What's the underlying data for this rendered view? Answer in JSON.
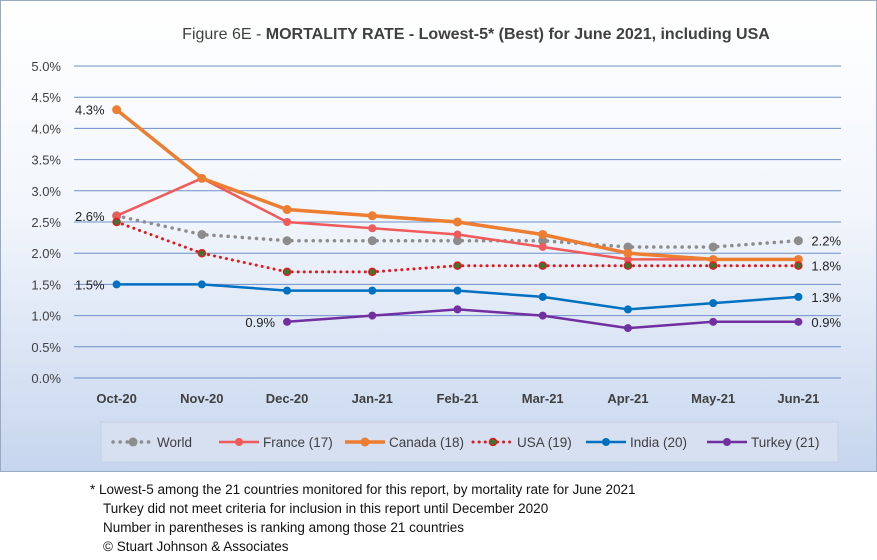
{
  "chart_data": {
    "type": "line",
    "title_prefix": "Figure 6E  - ",
    "title_main": "MORTALITY RATE - Lowest-5* (Best) for June 2021, including USA",
    "categories": [
      "Oct-20",
      "Nov-20",
      "Dec-20",
      "Jan-21",
      "Feb-21",
      "Mar-21",
      "Apr-21",
      "May-21",
      "Jun-21"
    ],
    "yticks": [
      "0.0%",
      "0.5%",
      "1.0%",
      "1.5%",
      "2.0%",
      "2.5%",
      "3.0%",
      "3.5%",
      "4.0%",
      "4.5%",
      "5.0%"
    ],
    "ylim": [
      0,
      5
    ],
    "grid": true,
    "legend_position": "bottom",
    "series": [
      {
        "name": "World",
        "color": "#8c8c8c",
        "style": "dotted-gray",
        "values": [
          2.6,
          2.3,
          2.2,
          2.2,
          2.2,
          2.2,
          2.1,
          2.1,
          2.2
        ]
      },
      {
        "name": "France (17)",
        "color": "#f05a5a",
        "style": "solid",
        "values": [
          2.6,
          3.2,
          2.5,
          2.4,
          2.3,
          2.1,
          1.9,
          1.9,
          1.9
        ]
      },
      {
        "name": "Canada (18)",
        "color": "#ed7d31",
        "style": "solid-thick",
        "values": [
          4.3,
          3.2,
          2.7,
          2.6,
          2.5,
          2.3,
          2.0,
          1.9,
          1.9
        ]
      },
      {
        "name": "USA (19)",
        "color": "#e31a1c",
        "style": "dotted-red",
        "values": [
          2.5,
          2.0,
          1.7,
          1.7,
          1.8,
          1.8,
          1.8,
          1.8,
          1.8
        ]
      },
      {
        "name": "India (20)",
        "color": "#0070c0",
        "style": "solid",
        "values": [
          1.5,
          1.5,
          1.4,
          1.4,
          1.4,
          1.3,
          1.1,
          1.2,
          1.3
        ]
      },
      {
        "name": "Turkey (21)",
        "color": "#7030a0",
        "style": "solid",
        "values": [
          null,
          null,
          0.9,
          1.0,
          1.1,
          1.0,
          0.8,
          0.9,
          0.9
        ]
      }
    ],
    "annotations": [
      {
        "text": "4.3%",
        "series": "Canada (18)",
        "index": 0,
        "side": "left"
      },
      {
        "text": "2.6%",
        "series": "France (17)",
        "index": 0,
        "side": "left"
      },
      {
        "text": "1.5%",
        "series": "India (20)",
        "index": 0,
        "side": "left"
      },
      {
        "text": "0.9%",
        "series": "Turkey (21)",
        "index": 2,
        "side": "left"
      },
      {
        "text": "2.2%",
        "series": "World",
        "index": 8,
        "side": "right"
      },
      {
        "text": "1.8%",
        "series": "USA (19)",
        "index": 8,
        "side": "right"
      },
      {
        "text": "1.3%",
        "series": "India (20)",
        "index": 8,
        "side": "right"
      },
      {
        "text": "0.9%",
        "series": "Turkey (21)",
        "index": 8,
        "side": "right"
      }
    ]
  },
  "footnotes": {
    "line1": "* Lowest-5 among the 21 countries monitored for this report, by mortality rate for June 2021",
    "line2": "Turkey did not meet criteria for inclusion in this report until December 2020",
    "line3": "Number in parentheses is ranking among those 21 countries",
    "line4": "© Stuart Johnson & Associates"
  }
}
